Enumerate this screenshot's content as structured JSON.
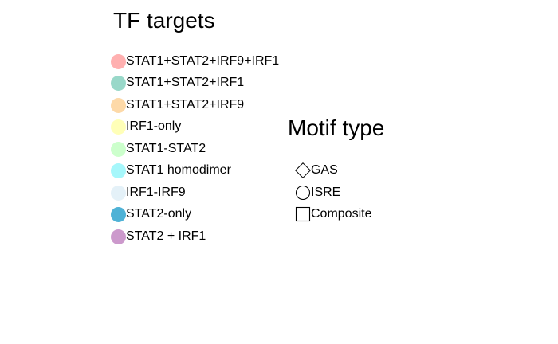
{
  "tf_legend": {
    "title": "TF targets",
    "items": [
      {
        "label": "STAT1+STAT2+IRF9+IRF1",
        "color": "#ffb0b0"
      },
      {
        "label": "STAT1+STAT2+IRF1",
        "color": "#99d8c9"
      },
      {
        "label": "STAT1+STAT2+IRF9",
        "color": "#fdd9a8"
      },
      {
        "label": "IRF1-only",
        "color": "#ffffb8"
      },
      {
        "label": "STAT1-STAT2",
        "color": "#ccffcc"
      },
      {
        "label": "STAT1 homodimer",
        "color": "#a6f7fb"
      },
      {
        "label": "IRF1-IRF9",
        "color": "#e4f1f8"
      },
      {
        "label": "STAT2-only",
        "color": "#4fb2d6"
      },
      {
        "label": "STAT2 + IRF1",
        "color": "#cc99cc"
      }
    ]
  },
  "motif_legend": {
    "title": "Motif type",
    "items": [
      {
        "label": "GAS",
        "shape": "diamond-icon"
      },
      {
        "label": "ISRE",
        "shape": "circle-icon"
      },
      {
        "label": "Composite",
        "shape": "square-icon"
      }
    ]
  }
}
